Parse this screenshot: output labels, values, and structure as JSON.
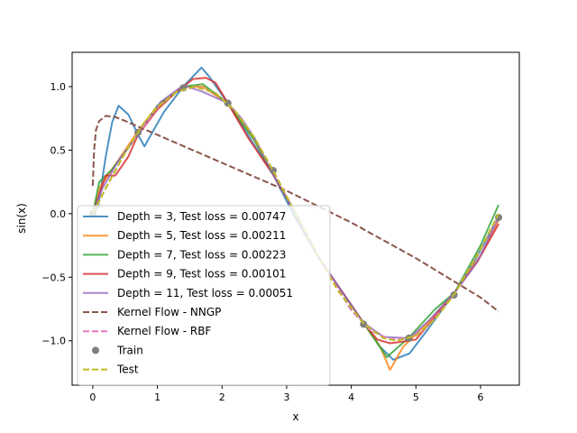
{
  "chart_data": {
    "type": "line",
    "xlabel": "x",
    "ylabel": "sin(x)",
    "xlim": [
      -0.32,
      6.6
    ],
    "ylim": [
      -1.35,
      1.27
    ],
    "xticks": [
      0,
      1,
      2,
      3,
      4,
      5,
      6
    ],
    "xtick_labels": [
      "0",
      "1",
      "2",
      "3",
      "4",
      "5",
      "6"
    ],
    "yticks": [
      -1.0,
      -0.5,
      0.0,
      0.5,
      1.0
    ],
    "ytick_labels": [
      "−1.0",
      "−0.5",
      "0.0",
      "0.5",
      "1.0"
    ],
    "grid": false,
    "legend_position": "lower-left",
    "series": [
      {
        "name": "Depth = 3, Test loss = 0.00747",
        "style": "solid",
        "color": "#1f77b4",
        "x": [
          0,
          0.08,
          0.2,
          0.3,
          0.4,
          0.55,
          0.7,
          0.8,
          0.9,
          1.1,
          1.4,
          1.68,
          1.8,
          2.09,
          2.4,
          2.8,
          3.1,
          3.5,
          4.19,
          4.45,
          4.65,
          4.9,
          5.2,
          5.6,
          5.9,
          6.28
        ],
        "y": [
          0.0,
          0.05,
          0.45,
          0.72,
          0.85,
          0.78,
          0.62,
          0.53,
          0.62,
          0.8,
          1.0,
          1.15,
          1.08,
          0.87,
          0.62,
          0.3,
          0.0,
          -0.35,
          -0.86,
          -1.05,
          -1.15,
          -1.1,
          -0.9,
          -0.62,
          -0.38,
          -0.02
        ]
      },
      {
        "name": "Depth = 5, Test loss = 0.00211",
        "style": "solid",
        "color": "#ff7f0e",
        "x": [
          0,
          0.1,
          0.3,
          0.7,
          1.0,
          1.4,
          1.7,
          2.09,
          2.5,
          2.8,
          3.14,
          3.5,
          4.19,
          4.45,
          4.6,
          4.8,
          5.2,
          5.6,
          6.0,
          6.28
        ],
        "y": [
          0.0,
          0.2,
          0.35,
          0.65,
          0.85,
          1.0,
          1.0,
          0.87,
          0.58,
          0.3,
          0.0,
          -0.35,
          -0.86,
          -1.05,
          -1.23,
          -1.05,
          -0.85,
          -0.62,
          -0.33,
          -0.05
        ]
      },
      {
        "name": "Depth = 7, Test loss = 0.00223",
        "style": "solid",
        "color": "#2ca02c",
        "x": [
          0,
          0.1,
          0.3,
          0.7,
          1.0,
          1.4,
          1.7,
          2.09,
          2.5,
          2.8,
          3.14,
          3.5,
          4.19,
          4.55,
          4.9,
          5.3,
          5.6,
          6.0,
          6.28
        ],
        "y": [
          0.0,
          0.25,
          0.35,
          0.62,
          0.85,
          1.0,
          1.02,
          0.87,
          0.58,
          0.3,
          0.0,
          -0.35,
          -0.86,
          -1.13,
          -0.97,
          -0.75,
          -0.62,
          -0.25,
          0.07
        ]
      },
      {
        "name": "Depth = 9, Test loss = 0.00101",
        "style": "solid",
        "color": "#d62728",
        "x": [
          0,
          0.1,
          0.2,
          0.35,
          0.55,
          0.7,
          1.0,
          1.3,
          1.55,
          1.75,
          1.9,
          2.09,
          2.4,
          2.8,
          3.14,
          3.5,
          4.19,
          4.4,
          4.6,
          4.9,
          5.0,
          5.2,
          5.6,
          5.95,
          6.28
        ],
        "y": [
          0.0,
          0.15,
          0.3,
          0.3,
          0.45,
          0.62,
          0.82,
          0.96,
          1.06,
          1.07,
          1.03,
          0.87,
          0.6,
          0.3,
          0.0,
          -0.35,
          -0.86,
          -0.99,
          -1.02,
          -1.0,
          -0.99,
          -0.87,
          -0.62,
          -0.38,
          -0.08
        ]
      },
      {
        "name": "Depth = 11, Test loss = 0.00051",
        "style": "solid",
        "color": "#9467bd",
        "x": [
          0,
          0.15,
          0.4,
          0.7,
          1.05,
          1.4,
          1.7,
          2.09,
          2.3,
          2.5,
          2.8,
          3.14,
          3.5,
          4.19,
          4.5,
          4.9,
          5.2,
          5.6,
          5.95,
          6.28
        ],
        "y": [
          0.0,
          0.2,
          0.42,
          0.62,
          0.88,
          1.01,
          0.96,
          0.87,
          0.75,
          0.6,
          0.3,
          0.0,
          -0.35,
          -0.86,
          -0.97,
          -0.98,
          -0.84,
          -0.62,
          -0.38,
          -0.03
        ]
      },
      {
        "name": "Kernel Flow - NNGP",
        "style": "dashed",
        "color": "#8c564b",
        "x": [
          0.0,
          0.02,
          0.05,
          0.1,
          0.2,
          0.35,
          0.5,
          1.0,
          2.0,
          3.0,
          4.0,
          5.0,
          6.0,
          6.28
        ],
        "y": [
          0.22,
          0.5,
          0.66,
          0.73,
          0.77,
          0.76,
          0.73,
          0.62,
          0.4,
          0.18,
          -0.07,
          -0.35,
          -0.66,
          -0.77
        ]
      },
      {
        "name": "Kernel Flow - RBF",
        "style": "dashed",
        "color": "#e377c2",
        "x": [
          0,
          0.2,
          0.5,
          1.0,
          1.3,
          1.6,
          1.9,
          2.2,
          2.5,
          2.8,
          3.14,
          3.5,
          4.0,
          4.3,
          4.6,
          4.9,
          5.2,
          5.6,
          6.0,
          6.28
        ],
        "y": [
          0.0,
          0.2,
          0.48,
          0.84,
          0.96,
          1.0,
          0.95,
          0.81,
          0.6,
          0.33,
          0.0,
          -0.35,
          -0.76,
          -0.92,
          -0.99,
          -0.98,
          -0.88,
          -0.63,
          -0.28,
          -0.02
        ]
      },
      {
        "name": "Train",
        "style": "markers",
        "color": "#7f7f7f",
        "x": [
          0.0,
          0.7,
          1.4,
          2.09,
          2.79,
          4.19,
          4.89,
          5.59,
          6.28
        ],
        "y": [
          0.0,
          0.64,
          0.99,
          0.87,
          0.34,
          -0.87,
          -0.98,
          -0.64,
          -0.03
        ]
      },
      {
        "name": "Test",
        "style": "dashed",
        "color": "#bcbd22",
        "x": [
          0,
          0.2,
          0.5,
          0.8,
          1.0,
          1.3,
          1.57,
          1.9,
          2.2,
          2.5,
          2.8,
          3.14,
          3.5,
          3.8,
          4.2,
          4.5,
          4.71,
          5.0,
          5.3,
          5.6,
          6.0,
          6.28
        ],
        "y": [
          0.0,
          0.2,
          0.48,
          0.72,
          0.84,
          0.96,
          1.0,
          0.95,
          0.81,
          0.6,
          0.33,
          0.0,
          -0.35,
          -0.61,
          -0.87,
          -0.98,
          -1.0,
          -0.96,
          -0.83,
          -0.63,
          -0.28,
          0.0
        ]
      }
    ]
  }
}
